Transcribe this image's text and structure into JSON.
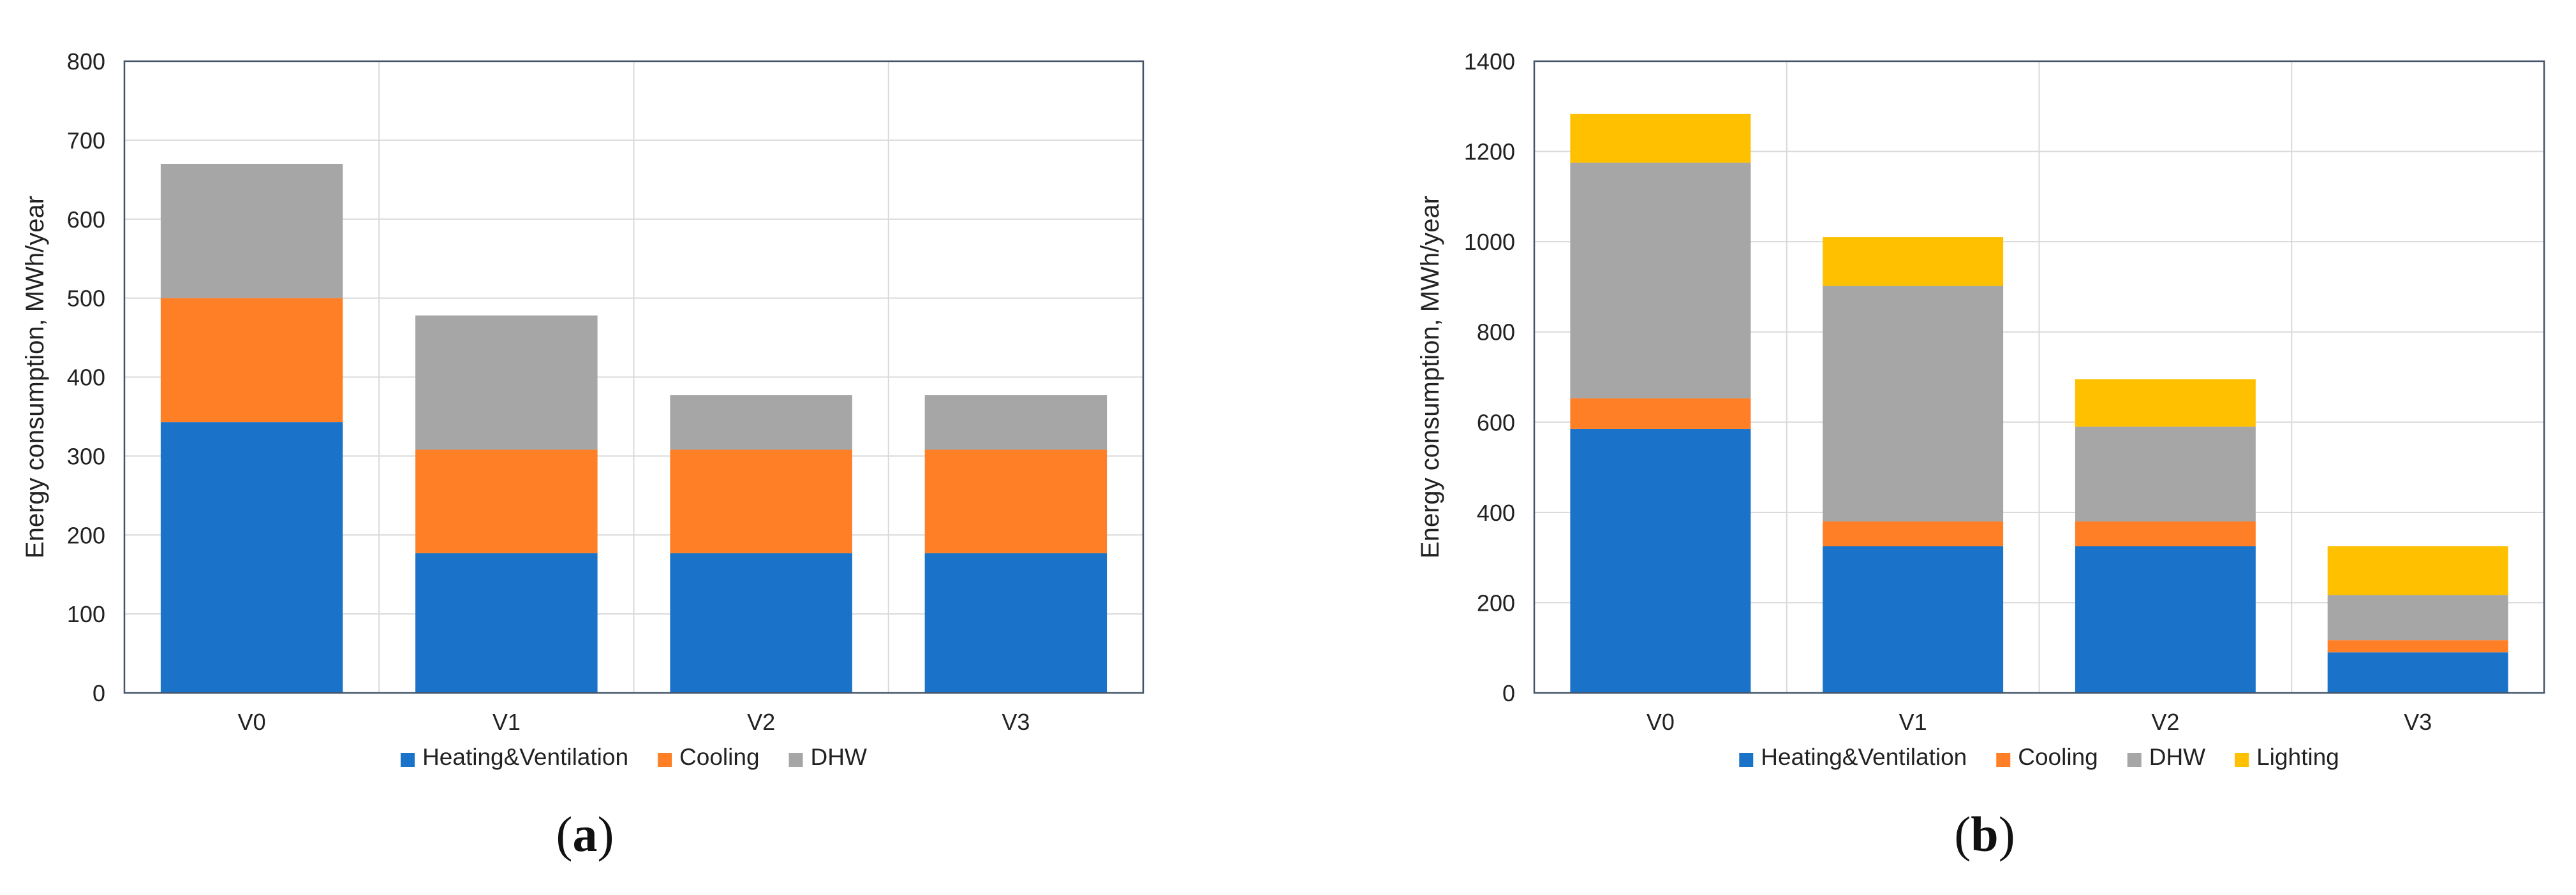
{
  "colors": {
    "Heating&Ventilation": "#1a73c8",
    "Cooling": "#ff7f27",
    "DHW": "#a6a6a6",
    "Lighting": "#ffc000"
  },
  "chart_data": [
    {
      "type": "bar",
      "stacked": true,
      "panel_label": "a",
      "categories": [
        "V0",
        "V1",
        "V2",
        "V3"
      ],
      "series": [
        {
          "name": "Heating&Ventilation",
          "values": [
            343,
            177,
            177,
            177
          ]
        },
        {
          "name": "Cooling",
          "values": [
            157,
            131,
            131,
            131
          ]
        },
        {
          "name": "DHW",
          "values": [
            170,
            170,
            69,
            69
          ]
        }
      ],
      "ylabel": "Energy consumption, MWh/year",
      "xlabel": "",
      "ylim": [
        0,
        800
      ],
      "yticks": [
        0,
        100,
        200,
        300,
        400,
        500,
        600,
        700,
        800
      ],
      "grid": true,
      "legend": "bottom"
    },
    {
      "type": "bar",
      "stacked": true,
      "panel_label": "b",
      "categories": [
        "V0",
        "V1",
        "V2",
        "V3"
      ],
      "series": [
        {
          "name": "Heating&Ventilation",
          "values": [
            585,
            325,
            325,
            90
          ]
        },
        {
          "name": "Cooling",
          "values": [
            68,
            55,
            55,
            27
          ]
        },
        {
          "name": "DHW",
          "values": [
            522,
            522,
            210,
            100
          ]
        },
        {
          "name": "Lighting",
          "values": [
            108,
            108,
            105,
            108
          ]
        }
      ],
      "ylabel": "Energy consumption, MWh/year",
      "xlabel": "",
      "ylim": [
        0,
        1400
      ],
      "yticks": [
        0,
        200,
        400,
        600,
        800,
        1000,
        1200,
        1400
      ],
      "grid": true,
      "legend": "bottom"
    }
  ]
}
